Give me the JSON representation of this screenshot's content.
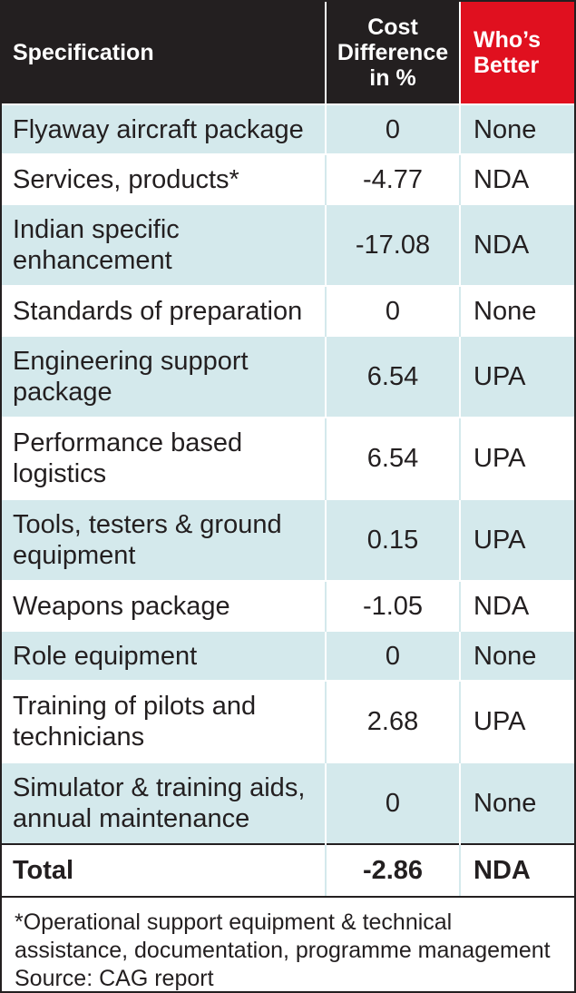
{
  "chart_data": {
    "type": "table",
    "columns": [
      "Specification",
      "Cost Difference in %",
      "Who’s Better"
    ],
    "rows": [
      {
        "spec": "Flyaway aircraft package",
        "cost": "0",
        "better": "None"
      },
      {
        "spec": "Services, products*",
        "cost": "-4.77",
        "better": "NDA"
      },
      {
        "spec": "Indian specific enhancement",
        "cost": "-17.08",
        "better": "NDA"
      },
      {
        "spec": "Standards of preparation",
        "cost": "0",
        "better": "None"
      },
      {
        "spec": "Engineering support package",
        "cost": "6.54",
        "better": "UPA"
      },
      {
        "spec": "Performance based logistics",
        "cost": "6.54",
        "better": "UPA"
      },
      {
        "spec": "Tools, testers & ground equipment",
        "cost": "0.15",
        "better": "UPA"
      },
      {
        "spec": "Weapons package",
        "cost": "-1.05",
        "better": "NDA"
      },
      {
        "spec": "Role equipment",
        "cost": "0",
        "better": "None"
      },
      {
        "spec": "Training of pilots and technicians",
        "cost": "2.68",
        "better": "UPA"
      },
      {
        "spec": "Simulator & training aids, annual maintenance",
        "cost": "0",
        "better": "None"
      }
    ],
    "total": {
      "spec": "Total",
      "cost": "-2.86",
      "better": "NDA"
    }
  },
  "header": {
    "spec": "Specification",
    "cost_line1": "Cost",
    "cost_line2": "Difference",
    "cost_line3": "in %",
    "better_line1": "Who’s",
    "better_line2": "Better"
  },
  "notes": {
    "footnote": "*Operational support equipment & technical assistance, documentation, programme management",
    "source": "Source: CAG report"
  },
  "colors": {
    "header_dark": "#231f20",
    "header_red": "#e0101f",
    "row_shade": "#d4e9ec",
    "text": "#231f20"
  }
}
